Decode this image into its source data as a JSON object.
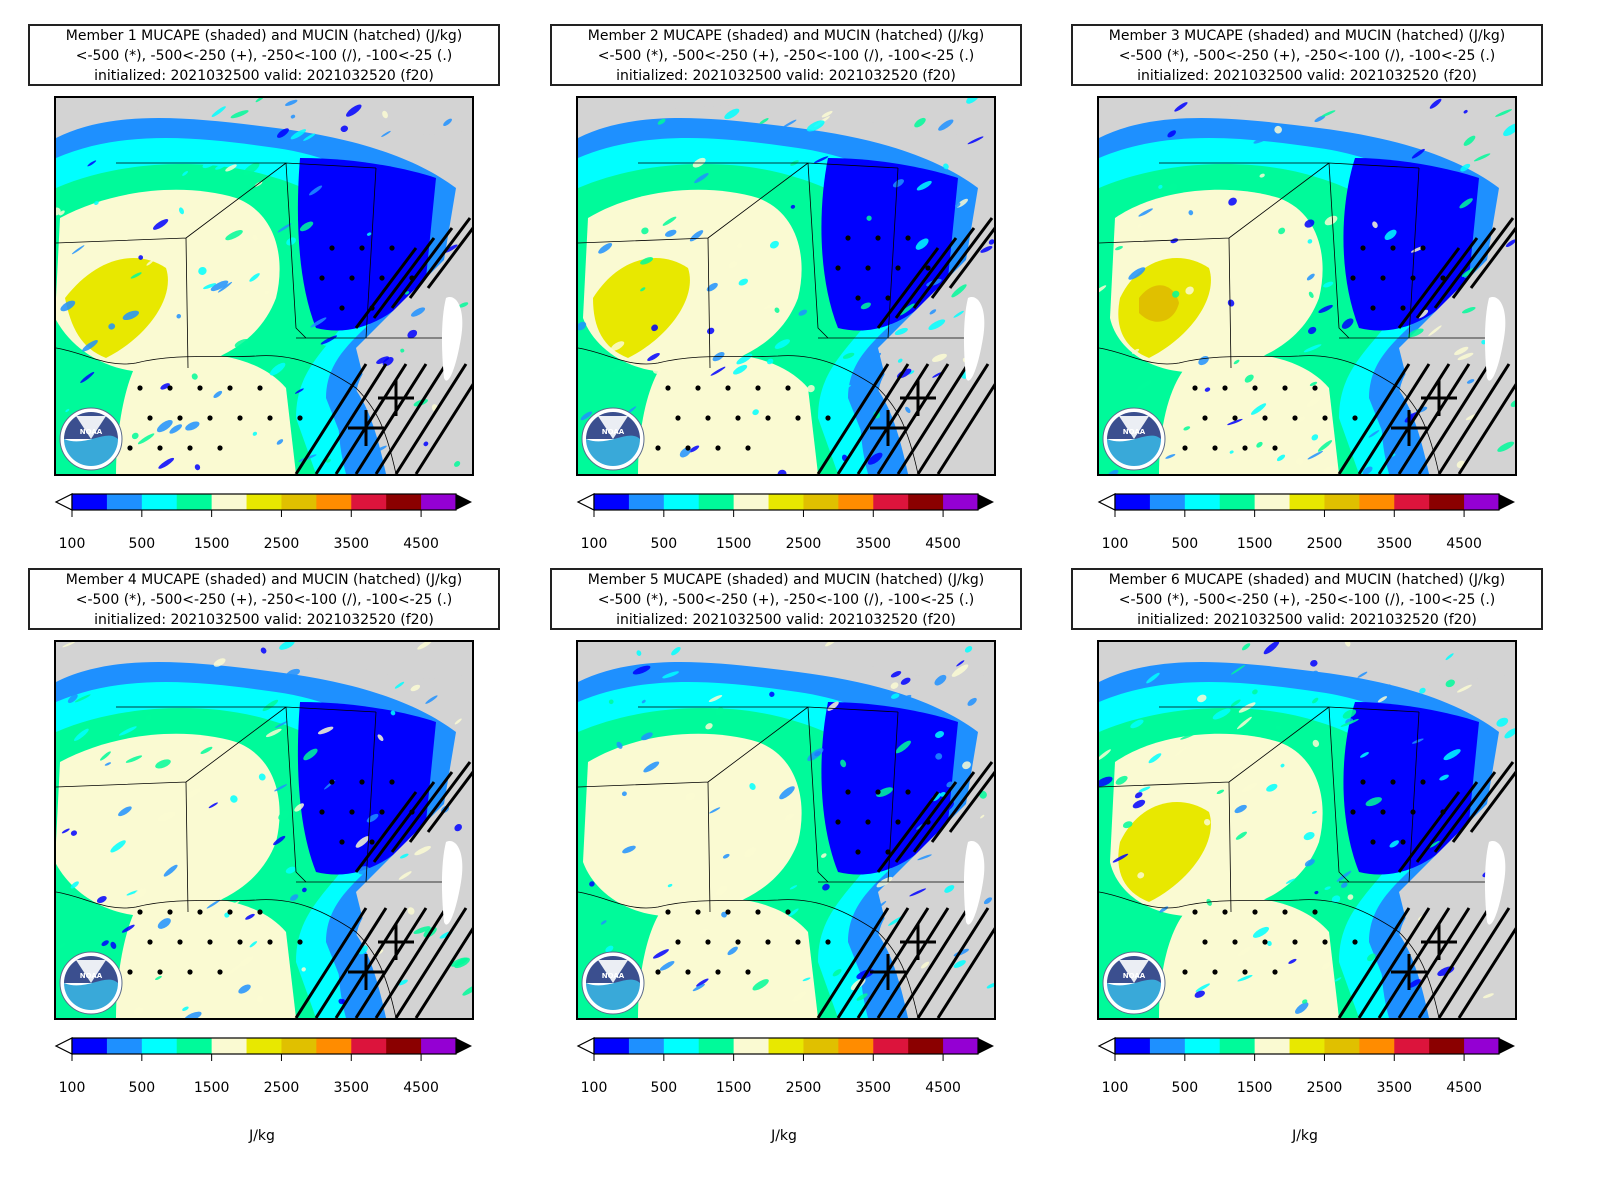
{
  "panels": [
    {
      "title": "Member 1 MUCAPE (shaded) and MUCIN (hatched) (J/kg)",
      "legend_line": "<-500 (*), -500<-250 (+), -250<-100 (/), -100<-25 (.)",
      "init_line": "initialized: 2021032500 valid: 2021032520 (f20)"
    },
    {
      "title": "Member 2 MUCAPE (shaded) and MUCIN (hatched) (J/kg)",
      "legend_line": "<-500 (*), -500<-250 (+), -250<-100 (/), -100<-25 (.)",
      "init_line": "initialized: 2021032500 valid: 2021032520 (f20)"
    },
    {
      "title": "Member 3 MUCAPE (shaded) and MUCIN (hatched) (J/kg)",
      "legend_line": "<-500 (*), -500<-250 (+), -250<-100 (/), -100<-25 (.)",
      "init_line": "initialized: 2021032500 valid: 2021032520 (f20)"
    },
    {
      "title": "Member 4 MUCAPE (shaded) and MUCIN (hatched) (J/kg)",
      "legend_line": "<-500 (*), -500<-250 (+), -250<-100 (/), -100<-25 (.)",
      "init_line": "initialized: 2021032500 valid: 2021032520 (f20)"
    },
    {
      "title": "Member 5 MUCAPE (shaded) and MUCIN (hatched) (J/kg)",
      "legend_line": "<-500 (*), -500<-250 (+), -250<-100 (/), -100<-25 (.)",
      "init_line": "initialized: 2021032500 valid: 2021032520 (f20)"
    },
    {
      "title": "Member 6 MUCAPE (shaded) and MUCIN (hatched) (J/kg)",
      "legend_line": "<-500 (*), -500<-250 (+), -250<-100 (/), -100<-25 (.)",
      "init_line": "initialized: 2021032500 valid: 2021032520 (f20)"
    }
  ],
  "colorbar": {
    "tick_labels": [
      "100",
      "500",
      "1500",
      "2500",
      "3500",
      "4500"
    ],
    "colors": [
      "#0000ff",
      "#1e90ff",
      "#00ffff",
      "#00fa9a",
      "#fafad2",
      "#e8e800",
      "#e0c000",
      "#ff8c00",
      "#dc143c",
      "#8b0000",
      "#9400d3"
    ],
    "unit": "J/kg"
  },
  "logo_text": "NOAA"
}
